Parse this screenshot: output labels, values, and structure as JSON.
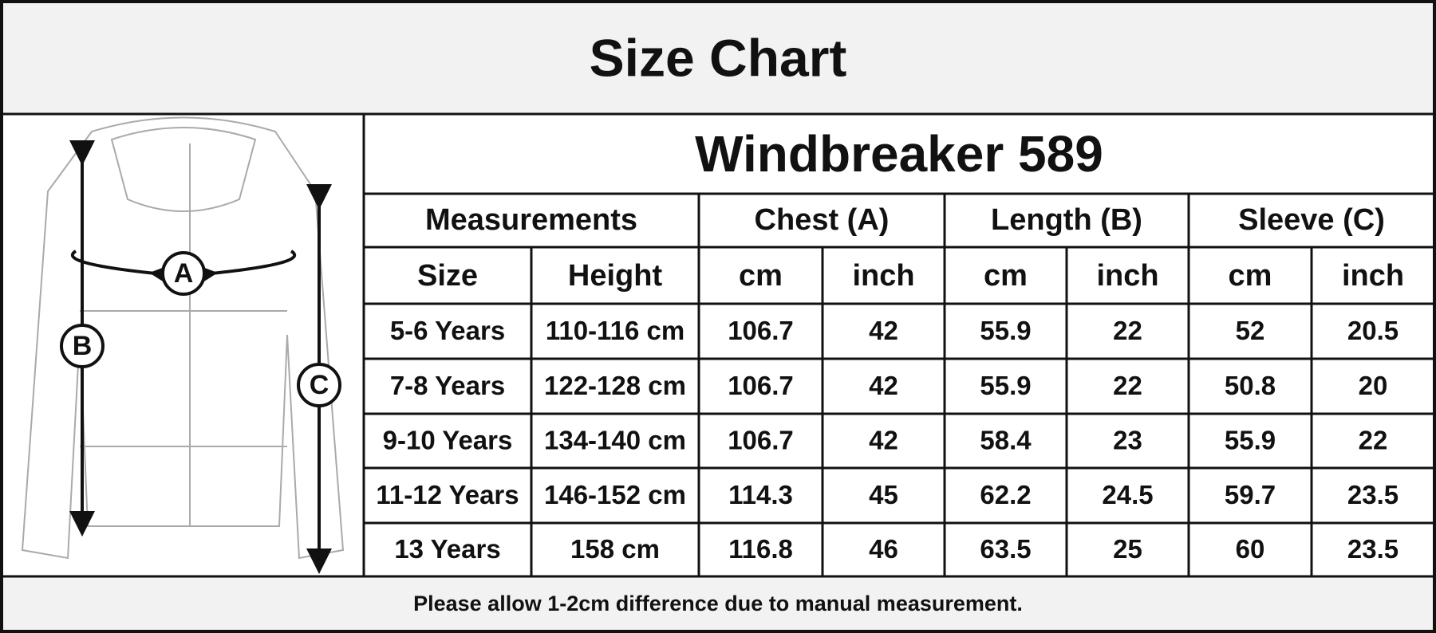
{
  "header": {
    "title": "Size Chart"
  },
  "diagram": {
    "labels": [
      "A",
      "B",
      "C"
    ]
  },
  "table": {
    "product": "Windbreaker 589",
    "groups": [
      "Measurements",
      "Chest (A)",
      "Length (B)",
      "Sleeve (C)"
    ],
    "subheaders": [
      "Size",
      "Height",
      "cm",
      "inch",
      "cm",
      "inch",
      "cm",
      "inch"
    ],
    "rows": [
      [
        "5-6 Years",
        "110-116 cm",
        106.7,
        42,
        55.9,
        22,
        52,
        20.5
      ],
      [
        "7-8 Years",
        "122-128 cm",
        106.7,
        42,
        55.9,
        22,
        50.8,
        20
      ],
      [
        "9-10 Years",
        "134-140 cm",
        106.7,
        42,
        58.4,
        23,
        55.9,
        22
      ],
      [
        "11-12 Years",
        "146-152 cm",
        114.3,
        45,
        62.2,
        24.5,
        59.7,
        23.5
      ],
      [
        "13 Years",
        "158 cm",
        116.8,
        46,
        63.5,
        25,
        60,
        23.5
      ]
    ]
  },
  "footer": {
    "note": "Please allow 1-2cm difference due to manual measurement."
  }
}
